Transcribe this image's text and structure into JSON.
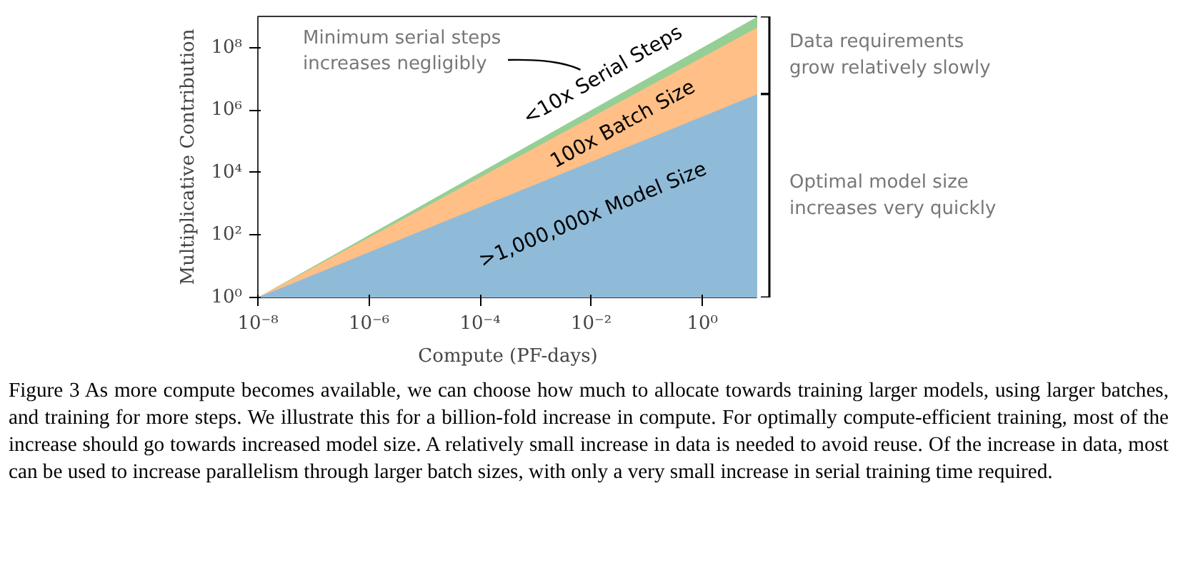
{
  "chart_data": {
    "type": "area",
    "xlabel": "Compute (PF-days)",
    "ylabel": "Multiplicative Contribution",
    "x": [
      1e-08,
      10
    ],
    "series": [
      {
        "color": "#95cf95",
        "values": [
          1,
          1000000000.0
        ]
      },
      {
        "color": "#ffbf86",
        "values": [
          1,
          450000000.0
        ]
      },
      {
        "color": "#8fbbd9",
        "values": [
          1,
          3300000.0
        ]
      }
    ],
    "log": "xy",
    "xlim": [
      1e-08,
      10
    ],
    "ylim": [
      1,
      1000000000.0
    ],
    "xticks": [
      {
        "value": 1e-08,
        "label": "10⁻⁸"
      },
      {
        "value": 1e-06,
        "label": "10⁻⁶"
      },
      {
        "value": 0.0001,
        "label": "10⁻⁴"
      },
      {
        "value": 0.01,
        "label": "10⁻²"
      },
      {
        "value": 1,
        "label": "10⁰"
      }
    ],
    "yticks": [
      {
        "value": 1,
        "label": "10⁰"
      },
      {
        "value": 100,
        "label": "10²"
      },
      {
        "value": 10000,
        "label": "10⁴"
      },
      {
        "value": 1000000.0,
        "label": "10⁶"
      },
      {
        "value": 100000000.0,
        "label": "10⁸"
      }
    ],
    "grid": false,
    "annotations": [
      "<10x Serial Steps",
      "100x Batch Size",
      ">1,000,000x Model Size",
      "Minimum serial steps\nincreases negligibly",
      "Data requirements\ngrow relatively slowly",
      "Optimal model size\nincreases very quickly",
      "Figure 3    As more compute becomes available, we can choose how much to allocate towards training larger models, using larger batches, and training for more steps.  We illustrate this for a billion-fold increase in compute. For optimally compute-efficient training, most of the increase should go towards increased model size. A relatively small increase in data is needed to avoid reuse. Of the increase in data, most can be used to increase parallelism through larger batch sizes, with only a very small increase in serial training time required."
    ]
  }
}
